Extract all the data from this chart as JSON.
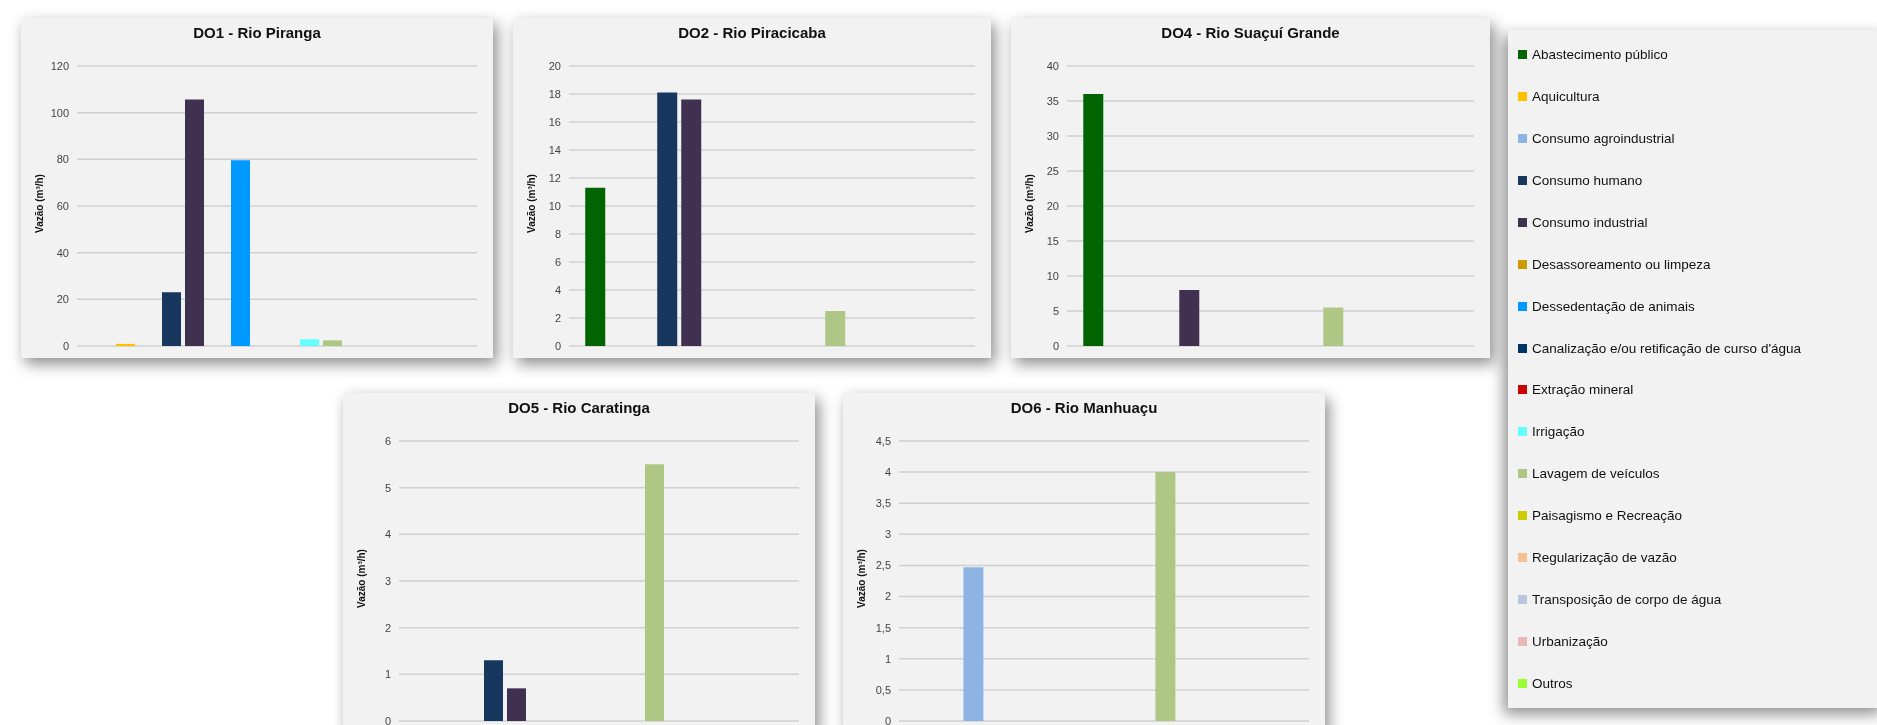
{
  "chart_data": [
    {
      "type": "bar",
      "title": "DO1 - Rio Piranga",
      "ylabel": "Vazão  (m³/h)",
      "categories": [
        null
      ],
      "ylim": [
        0,
        120
      ],
      "yticks": [
        0,
        20,
        40,
        60,
        80,
        100,
        120
      ],
      "grid": "y",
      "tick_labels": "y",
      "legend": "right",
      "series": [
        {
          "name": "Abastecimento público",
          "color": "#006400",
          "values": [
            null
          ]
        },
        {
          "name": "Aquicultura",
          "color": "#ffc000",
          "values": [
            0.9
          ]
        },
        {
          "name": "Consumo agroindustrial",
          "color": "#8eb4e3",
          "values": [
            null
          ]
        },
        {
          "name": "Consumo humano",
          "color": "#17375e",
          "values": [
            23
          ]
        },
        {
          "name": "Consumo industrial",
          "color": "#403151",
          "values": [
            105.6
          ]
        },
        {
          "name": "Desassoreamento ou limpeza",
          "color": "#cc9900",
          "values": [
            null
          ]
        },
        {
          "name": "Dessedentação de animais",
          "color": "#0099ff",
          "values": [
            79.6
          ]
        },
        {
          "name": "Canalização e/ou retificação de curso d'água",
          "color": "#003366",
          "values": [
            null
          ]
        },
        {
          "name": "Extração mineral",
          "color": "#cc0000",
          "values": [
            null
          ]
        },
        {
          "name": "Irrigação",
          "color": "#66ffff",
          "values": [
            2.9
          ]
        },
        {
          "name": "Lavagem de veículos",
          "color": "#aec785",
          "values": [
            2.4
          ]
        },
        {
          "name": "Paisagismo e Recreação",
          "color": "#cccc00",
          "values": [
            null
          ]
        },
        {
          "name": "Regularização de vazão",
          "color": "#fac090",
          "values": [
            null
          ]
        },
        {
          "name": "Transposição de corpo de água",
          "color": "#b9c7e0",
          "values": [
            null
          ]
        },
        {
          "name": "Urbanização",
          "color": "#e6b9b8",
          "values": [
            null
          ]
        },
        {
          "name": "Outros",
          "color": "#99ff33",
          "values": [
            null
          ]
        }
      ]
    },
    {
      "type": "bar",
      "title": "DO2 - Rio Piracicaba",
      "ylabel": "Vazão  (m³/h)",
      "categories": [
        null
      ],
      "ylim": [
        0,
        20
      ],
      "yticks": [
        0,
        2,
        4,
        6,
        8,
        10,
        12,
        14,
        16,
        18,
        20
      ],
      "grid": "y",
      "tick_labels": "y",
      "series": [
        {
          "color": "#006400",
          "values": [
            11.3
          ]
        },
        {
          "color": "#ffc000",
          "values": [
            null
          ]
        },
        {
          "color": "#8eb4e3",
          "values": [
            null
          ]
        },
        {
          "color": "#17375e",
          "values": [
            18.1
          ]
        },
        {
          "color": "#403151",
          "values": [
            17.6
          ]
        },
        {
          "color": "#cc9900",
          "values": [
            null
          ]
        },
        {
          "color": "#0099ff",
          "values": [
            null
          ]
        },
        {
          "color": "#003366",
          "values": [
            null
          ]
        },
        {
          "color": "#cc0000",
          "values": [
            null
          ]
        },
        {
          "color": "#66ffff",
          "values": [
            null
          ]
        },
        {
          "color": "#aec785",
          "values": [
            2.5
          ]
        },
        {
          "color": "#cccc00",
          "values": [
            null
          ]
        },
        {
          "color": "#fac090",
          "values": [
            null
          ]
        },
        {
          "color": "#b9c7e0",
          "values": [
            null
          ]
        },
        {
          "color": "#e6b9b8",
          "values": [
            null
          ]
        },
        {
          "color": "#99ff33",
          "values": [
            null
          ]
        }
      ]
    },
    {
      "type": "bar",
      "title": "DO4 - Rio Suaçuí Grande",
      "ylabel": "Vazão  (m³/h)",
      "categories": [
        null
      ],
      "ylim": [
        0,
        40
      ],
      "yticks": [
        0,
        5,
        10,
        15,
        20,
        25,
        30,
        35,
        40
      ],
      "grid": "y",
      "tick_labels": "y",
      "series": [
        {
          "color": "#006400",
          "values": [
            36
          ]
        },
        {
          "color": "#ffc000",
          "values": [
            null
          ]
        },
        {
          "color": "#8eb4e3",
          "values": [
            null
          ]
        },
        {
          "color": "#17375e",
          "values": [
            null
          ]
        },
        {
          "color": "#403151",
          "values": [
            8
          ]
        },
        {
          "color": "#cc9900",
          "values": [
            null
          ]
        },
        {
          "color": "#0099ff",
          "values": [
            null
          ]
        },
        {
          "color": "#003366",
          "values": [
            null
          ]
        },
        {
          "color": "#cc0000",
          "values": [
            null
          ]
        },
        {
          "color": "#66ffff",
          "values": [
            null
          ]
        },
        {
          "color": "#aec785",
          "values": [
            5.5
          ]
        },
        {
          "color": "#cccc00",
          "values": [
            null
          ]
        },
        {
          "color": "#fac090",
          "values": [
            null
          ]
        },
        {
          "color": "#b9c7e0",
          "values": [
            null
          ]
        },
        {
          "color": "#e6b9b8",
          "values": [
            null
          ]
        },
        {
          "color": "#99ff33",
          "values": [
            null
          ]
        }
      ]
    },
    {
      "type": "bar",
      "title": "DO5 - Rio Caratinga",
      "ylabel": "Vazão  (m³/h)",
      "categories": [
        null
      ],
      "ylim": [
        0,
        6
      ],
      "yticks": [
        0,
        1,
        2,
        3,
        4,
        5,
        6
      ],
      "grid": "y",
      "tick_labels": "y",
      "series": [
        {
          "color": "#006400",
          "values": [
            null
          ]
        },
        {
          "color": "#ffc000",
          "values": [
            null
          ]
        },
        {
          "color": "#8eb4e3",
          "values": [
            null
          ]
        },
        {
          "color": "#17375e",
          "values": [
            1.3
          ]
        },
        {
          "color": "#403151",
          "values": [
            0.7
          ]
        },
        {
          "color": "#cc9900",
          "values": [
            null
          ]
        },
        {
          "color": "#0099ff",
          "values": [
            null
          ]
        },
        {
          "color": "#003366",
          "values": [
            null
          ]
        },
        {
          "color": "#cc0000",
          "values": [
            null
          ]
        },
        {
          "color": "#66ffff",
          "values": [
            null
          ]
        },
        {
          "color": "#aec785",
          "values": [
            5.5
          ]
        },
        {
          "color": "#cccc00",
          "values": [
            null
          ]
        },
        {
          "color": "#fac090",
          "values": [
            null
          ]
        },
        {
          "color": "#b9c7e0",
          "values": [
            null
          ]
        },
        {
          "color": "#e6b9b8",
          "values": [
            null
          ]
        },
        {
          "color": "#99ff33",
          "values": [
            null
          ]
        }
      ]
    },
    {
      "type": "bar",
      "title": "DO6 - Rio Manhuaçu",
      "ylabel": "Vazão  (m³/h)",
      "categories": [
        null
      ],
      "ylim": [
        0,
        4.5
      ],
      "yticks": [
        0,
        {
          "value": 0.5,
          "label": "0,5"
        },
        1,
        {
          "value": 1.5,
          "label": "1,5"
        },
        2,
        {
          "value": 2.5,
          "label": "2,5"
        },
        3,
        {
          "value": 3.5,
          "label": "3,5"
        },
        4,
        {
          "value": 4.5,
          "label": "4,5"
        }
      ],
      "grid": "y",
      "tick_labels": "y",
      "series": [
        {
          "color": "#006400",
          "values": [
            null
          ]
        },
        {
          "color": "#ffc000",
          "values": [
            null
          ]
        },
        {
          "color": "#8eb4e3",
          "values": [
            2.47
          ]
        },
        {
          "color": "#17375e",
          "values": [
            null
          ]
        },
        {
          "color": "#403151",
          "values": [
            null
          ]
        },
        {
          "color": "#cc9900",
          "values": [
            null
          ]
        },
        {
          "color": "#0099ff",
          "values": [
            null
          ]
        },
        {
          "color": "#003366",
          "values": [
            null
          ]
        },
        {
          "color": "#cc0000",
          "values": [
            null
          ]
        },
        {
          "color": "#66ffff",
          "values": [
            null
          ]
        },
        {
          "color": "#aec785",
          "values": [
            4
          ]
        },
        {
          "color": "#cccc00",
          "values": [
            null
          ]
        },
        {
          "color": "#fac090",
          "values": [
            null
          ]
        },
        {
          "color": "#b9c7e0",
          "values": [
            null
          ]
        },
        {
          "color": "#e6b9b8",
          "values": [
            null
          ]
        },
        {
          "color": "#99ff33",
          "values": [
            null
          ]
        }
      ]
    }
  ]
}
